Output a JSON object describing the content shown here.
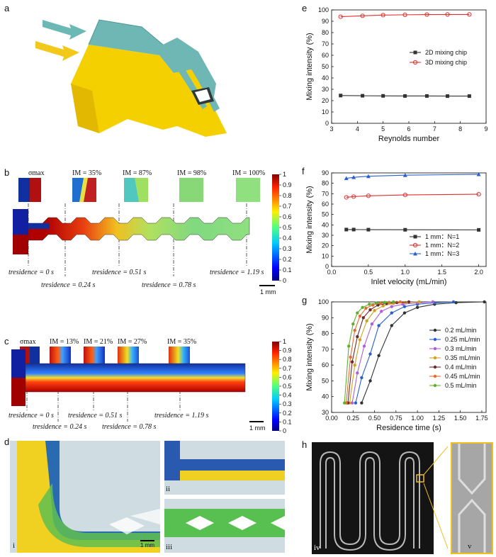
{
  "panels": {
    "a": "a",
    "b": "b",
    "c": "c",
    "d": "d",
    "e": "e",
    "f": "f",
    "g": "g",
    "h": "h"
  },
  "panel_b": {
    "im_labels": [
      "σmax",
      "IM = 35%",
      "IM = 87%",
      "IM = 98%",
      "IM = 100%"
    ],
    "times": [
      "tresidence = 0 s",
      "tresidence = 0.24 s",
      "tresidence = 0.51 s",
      "tresidence = 0.78 s",
      "tresidence = 1.19 s"
    ],
    "scale": "1 mm",
    "colorbar_ticks": [
      "1",
      "0.9",
      "0.8",
      "0.7",
      "0.6",
      "0.5",
      "0.4",
      "0.3",
      "0.2",
      "0.1",
      "0"
    ]
  },
  "panel_c": {
    "im_labels": [
      "σmax",
      "IM = 13%",
      "IM = 21%",
      "IM = 27%",
      "IM = 35%"
    ],
    "times": [
      "tresidence = 0 s",
      "tresidence = 0.24 s",
      "tresidence = 0.51 s",
      "tresidence = 0.78 s",
      "tresidence = 1.19 s"
    ],
    "scale": "1 mm",
    "colorbar_ticks": [
      "1",
      "0.9",
      "0.8",
      "0.7",
      "0.6",
      "0.5",
      "0.4",
      "0.3",
      "0.2",
      "0.1",
      "0"
    ]
  },
  "panel_d": {
    "sub": [
      "i",
      "ii",
      "iii"
    ],
    "scale": "1 mm"
  },
  "panel_h": {
    "sub": [
      "iv",
      "v"
    ]
  },
  "chart_data": [
    {
      "type": "line",
      "panel": "e",
      "xlabel": "Reynolds number",
      "ylabel": "Mixing intensity (%)",
      "xlim": [
        3,
        9
      ],
      "ylim": [
        0,
        100
      ],
      "xticks": [
        3,
        4,
        5,
        6,
        7,
        8,
        9
      ],
      "yticks": [
        0,
        10,
        20,
        30,
        40,
        50,
        60,
        70,
        80,
        90,
        100
      ],
      "legend": "right",
      "series": [
        {
          "name": "2D mixing chip",
          "color": "#333333",
          "marker": "square",
          "x": [
            3.35,
            4.2,
            5.0,
            5.85,
            6.7,
            7.5,
            8.35
          ],
          "y": [
            24.5,
            24.3,
            24.2,
            24.1,
            24.1,
            24.0,
            24.0
          ]
        },
        {
          "name": "3D mixing chip",
          "color": "#e03030",
          "marker": "circle",
          "x": [
            3.35,
            4.2,
            5.0,
            5.85,
            6.7,
            7.5,
            8.35
          ],
          "y": [
            94.0,
            94.8,
            95.4,
            95.7,
            95.9,
            96.0,
            96.0
          ]
        }
      ]
    },
    {
      "type": "line",
      "panel": "f",
      "xlabel": "Inlet  velocity (mL/min)",
      "ylabel": "Mixing intensity (%)",
      "xlim": [
        0,
        2.1
      ],
      "ylim": [
        0,
        90
      ],
      "xticks": [
        0.0,
        0.5,
        1.0,
        1.5,
        2.0
      ],
      "yticks": [
        0,
        10,
        20,
        30,
        40,
        50,
        60,
        70,
        80,
        90
      ],
      "legend": "bottom-right",
      "series": [
        {
          "name": "1 mm：N=1",
          "color": "#333333",
          "marker": "square",
          "x": [
            0.2,
            0.3,
            0.5,
            1.0,
            2.0
          ],
          "y": [
            35.5,
            35.5,
            35.4,
            35.3,
            35.2
          ]
        },
        {
          "name": "1 mm：N=2",
          "color": "#e03030",
          "marker": "circle",
          "x": [
            0.2,
            0.3,
            0.5,
            1.0,
            2.0
          ],
          "y": [
            66.5,
            67.2,
            68.0,
            68.8,
            69.5
          ]
        },
        {
          "name": "1 mm：N=3",
          "color": "#2a5fd0",
          "marker": "triangle",
          "x": [
            0.2,
            0.3,
            0.5,
            1.0,
            2.0
          ],
          "y": [
            84.8,
            85.8,
            86.8,
            87.8,
            88.6
          ]
        }
      ]
    },
    {
      "type": "line",
      "panel": "g",
      "xlabel": "Residence time (s)",
      "ylabel": "Mixing intensity (%)",
      "xlim": [
        0.0,
        1.8
      ],
      "ylim": [
        30,
        100
      ],
      "xticks": [
        0.0,
        0.25,
        0.5,
        0.75,
        1.0,
        1.25,
        1.5,
        1.75
      ],
      "xtick_labels": [
        "0.00",
        "0.25",
        "0.50",
        "0.75",
        "1.00",
        "1.25",
        "1.50",
        "1.75"
      ],
      "yticks": [
        30,
        40,
        50,
        60,
        70,
        80,
        90,
        100
      ],
      "legend": "right",
      "series": [
        {
          "name": "0.2 mL/min",
          "color": "#333333",
          "x": [
            0.35,
            0.45,
            0.55,
            0.7,
            0.85,
            1.0,
            1.2,
            1.45,
            1.78
          ],
          "y": [
            36,
            50,
            66,
            85,
            93,
            96.5,
            98.5,
            99.5,
            100
          ]
        },
        {
          "name": "0.25 mL/min",
          "color": "#2a5fd0",
          "x": [
            0.28,
            0.35,
            0.45,
            0.55,
            0.7,
            0.85,
            1.0,
            1.2,
            1.42
          ],
          "y": [
            36,
            52,
            67,
            85,
            93,
            97,
            98.5,
            99.4,
            100
          ]
        },
        {
          "name": "0.3 mL/min",
          "color": "#b060d0",
          "x": [
            0.24,
            0.3,
            0.38,
            0.47,
            0.58,
            0.7,
            0.83,
            1.0,
            1.18
          ],
          "y": [
            36,
            55,
            72,
            86,
            94,
            97,
            98.5,
            99.4,
            100
          ]
        },
        {
          "name": "0.35 mL/min",
          "color": "#d0a020",
          "x": [
            0.21,
            0.27,
            0.33,
            0.41,
            0.5,
            0.6,
            0.72,
            0.86,
            1.02
          ],
          "y": [
            36,
            60,
            76,
            88,
            94.5,
            97.5,
            99,
            99.6,
            100
          ]
        },
        {
          "name": "0.4 mL/min",
          "color": "#6a2a2a",
          "x": [
            0.19,
            0.24,
            0.3,
            0.37,
            0.45,
            0.54,
            0.64,
            0.76,
            0.9
          ],
          "y": [
            36,
            62,
            78,
            90,
            95,
            98,
            99,
            99.6,
            100
          ]
        },
        {
          "name": "0.45 mL/min",
          "color": "#e86a30",
          "x": [
            0.17,
            0.22,
            0.27,
            0.33,
            0.4,
            0.48,
            0.57,
            0.67,
            0.8
          ],
          "y": [
            36,
            65,
            82,
            91,
            96,
            98,
            99.2,
            99.7,
            100
          ]
        },
        {
          "name": "0.5 mL/min",
          "color": "#60b030",
          "x": [
            0.15,
            0.2,
            0.25,
            0.3,
            0.36,
            0.44,
            0.52,
            0.62,
            0.72
          ],
          "y": [
            36,
            72,
            86,
            93,
            96.5,
            98.5,
            99.3,
            99.7,
            100
          ]
        }
      ]
    }
  ]
}
